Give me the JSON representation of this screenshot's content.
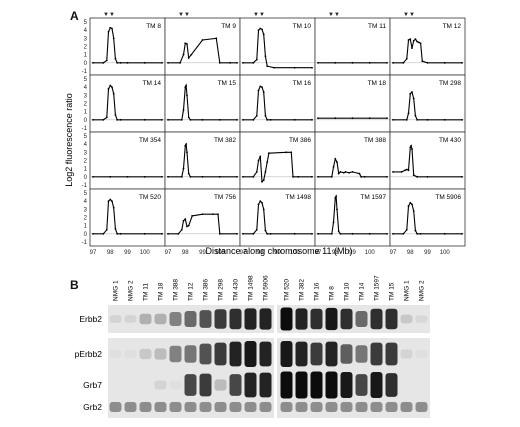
{
  "panel_a": {
    "letter": "A",
    "marker": "▼▼",
    "ylabel": "Log2 fluorescence ratio",
    "xlabel": "Distance along chromosome 11 (Mb)",
    "y_ticks": [
      "5",
      "4",
      "3",
      "2",
      "1",
      "0",
      "-1"
    ],
    "x_ticks": [
      "97",
      "98",
      "99",
      "100"
    ]
  },
  "chart_data": {
    "type": "line",
    "title": "",
    "xlabel": "Distance along chromosome 11 (Mb)",
    "ylabel": "Log2 fluorescence ratio",
    "xlim": [
      97,
      101
    ],
    "ylim": [
      -1,
      5
    ],
    "grid": false,
    "panels": [
      {
        "name": "TM 8",
        "x": [
          97.0,
          97.6,
          97.8,
          97.9,
          98.0,
          98.1,
          98.2,
          98.3,
          98.4,
          98.6,
          99.0,
          100.0,
          101.0
        ],
        "y": [
          0,
          0,
          0.3,
          3.8,
          4.3,
          4.2,
          3.0,
          0.5,
          0,
          0,
          0,
          0,
          0
        ]
      },
      {
        "name": "TM 9",
        "x": [
          97.0,
          97.7,
          97.9,
          98.0,
          98.1,
          98.2,
          98.35,
          99.0,
          99.8,
          100.0,
          100.6,
          101.0
        ],
        "y": [
          0,
          0,
          1.0,
          2.4,
          2.3,
          0.6,
          1.0,
          2.8,
          3.0,
          0,
          0,
          0
        ]
      },
      {
        "name": "TM 10",
        "x": [
          97.0,
          97.6,
          97.8,
          97.9,
          98.0,
          98.1,
          98.2,
          98.3,
          98.4,
          98.8,
          100.0,
          101.0
        ],
        "y": [
          0,
          0,
          0.4,
          4.0,
          4.2,
          4.1,
          3.5,
          0.8,
          -0.4,
          -0.6,
          -0.6,
          -0.6
        ]
      },
      {
        "name": "TM 11",
        "x": [
          97.0,
          98.0,
          99.0,
          100.0,
          101.0
        ],
        "y": [
          0,
          0,
          0,
          0,
          0
        ]
      },
      {
        "name": "TM 12",
        "x": [
          97.0,
          97.6,
          97.8,
          97.9,
          98.0,
          98.1,
          98.2,
          98.3,
          98.4,
          98.5,
          98.6,
          98.7,
          99.0,
          100.0,
          101.0
        ],
        "y": [
          0,
          0,
          0.5,
          2.8,
          2.9,
          1.8,
          2.7,
          2.9,
          2.6,
          2.5,
          2.4,
          0.2,
          0,
          0,
          0
        ]
      },
      {
        "name": "TM 14",
        "x": [
          97.0,
          97.6,
          97.8,
          97.9,
          98.0,
          98.1,
          98.2,
          98.3,
          98.4,
          98.6,
          100.0,
          101.0
        ],
        "y": [
          0,
          0,
          0.3,
          3.8,
          4.2,
          4.0,
          3.2,
          0.6,
          0,
          0,
          0,
          0
        ]
      },
      {
        "name": "TM 15",
        "x": [
          97.0,
          97.8,
          97.9,
          98.0,
          98.05,
          98.1,
          98.2,
          98.3,
          99.0,
          100.0,
          101.0
        ],
        "y": [
          0,
          0,
          1.2,
          4.0,
          4.2,
          3.0,
          0.3,
          0,
          0,
          0,
          0
        ]
      },
      {
        "name": "TM 16",
        "x": [
          97.0,
          97.6,
          97.8,
          97.9,
          98.0,
          98.1,
          98.2,
          98.3,
          98.4,
          98.6,
          100.0,
          101.0
        ],
        "y": [
          0,
          0,
          0.5,
          3.6,
          4.1,
          4.0,
          3.4,
          0.5,
          0,
          0,
          0,
          0
        ]
      },
      {
        "name": "TM 18",
        "x": [
          97.0,
          98.0,
          99.0,
          100.0,
          101.0
        ],
        "y": [
          0.2,
          0.2,
          0.2,
          0.2,
          0.2
        ]
      },
      {
        "name": "TM 298",
        "x": [
          97.0,
          97.8,
          97.9,
          98.0,
          98.1,
          98.2,
          98.3,
          98.4,
          99.0,
          100.0,
          101.0
        ],
        "y": [
          0,
          0,
          0.8,
          3.2,
          3.4,
          2.6,
          0.5,
          0,
          0,
          0,
          0
        ]
      },
      {
        "name": "TM 354",
        "x": [
          97.0,
          98.0,
          99.0,
          100.0,
          101.0
        ],
        "y": [
          0,
          0,
          0,
          0,
          0
        ]
      },
      {
        "name": "TM 382",
        "x": [
          97.0,
          97.8,
          97.9,
          98.0,
          98.05,
          98.1,
          98.2,
          98.3,
          99.0,
          100.0,
          101.0
        ],
        "y": [
          0,
          0,
          1.0,
          3.8,
          4.0,
          3.0,
          0.4,
          0,
          0,
          0,
          0
        ]
      },
      {
        "name": "TM 386",
        "x": [
          97.0,
          97.6,
          97.8,
          97.9,
          98.0,
          98.1,
          98.2,
          98.3,
          98.4,
          98.5,
          99.5,
          99.8,
          99.9,
          100.2,
          101.0
        ],
        "y": [
          0,
          0,
          0.6,
          2.0,
          2.5,
          -0.6,
          -0.4,
          0.6,
          1.8,
          2.9,
          3.0,
          3.0,
          0,
          0,
          0
        ]
      },
      {
        "name": "TM 388",
        "x": [
          97.0,
          97.8,
          97.9,
          98.0,
          98.1,
          98.2,
          98.3,
          98.5,
          98.6,
          98.8,
          99.0,
          99.4,
          99.5,
          99.7,
          101.0
        ],
        "y": [
          0,
          0,
          1.2,
          2.2,
          1.8,
          0.4,
          0.6,
          0.5,
          0.6,
          0.5,
          0.6,
          0.4,
          0.0,
          0.0,
          0.0
        ]
      },
      {
        "name": "TM 430",
        "x": [
          97.0,
          97.5,
          97.7,
          97.8,
          97.9,
          98.0,
          98.05,
          98.1,
          98.2,
          98.4,
          99.0,
          101.0
        ],
        "y": [
          0.6,
          0.6,
          0.8,
          0.9,
          0.8,
          3.6,
          3.8,
          3.4,
          0.2,
          0,
          0,
          0
        ]
      },
      {
        "name": "TM 520",
        "x": [
          97.0,
          97.6,
          97.8,
          97.9,
          98.0,
          98.1,
          98.2,
          98.3,
          98.4,
          98.6,
          100.0,
          101.0
        ],
        "y": [
          0,
          0,
          0.5,
          4.0,
          4.2,
          4.0,
          3.2,
          0.6,
          0,
          0,
          0,
          0
        ]
      },
      {
        "name": "TM 756",
        "x": [
          97.0,
          97.6,
          97.8,
          97.9,
          98.0,
          98.1,
          98.2,
          98.4,
          99.0,
          99.6,
          99.9,
          100.0,
          101.0
        ],
        "y": [
          0,
          0,
          0.5,
          1.6,
          1.8,
          0.9,
          1.0,
          2.2,
          2.4,
          2.4,
          2.4,
          0,
          0
        ]
      },
      {
        "name": "TM 1498",
        "x": [
          97.0,
          97.6,
          97.8,
          97.9,
          98.0,
          98.1,
          98.2,
          98.3,
          98.4,
          98.6,
          100.0,
          101.0
        ],
        "y": [
          0,
          0,
          0.5,
          3.6,
          4.0,
          3.8,
          3.0,
          0.4,
          0,
          0,
          0,
          0
        ]
      },
      {
        "name": "TM 1597",
        "x": [
          97.0,
          97.8,
          97.9,
          98.0,
          98.05,
          98.1,
          98.2,
          98.3,
          99.0,
          100.0,
          101.0
        ],
        "y": [
          0,
          0,
          1.4,
          4.4,
          4.6,
          3.0,
          0.3,
          0,
          0,
          0,
          0
        ]
      },
      {
        "name": "TM 5906",
        "x": [
          97.0,
          97.6,
          97.8,
          97.9,
          98.0,
          98.1,
          98.2,
          98.3,
          98.4,
          98.6,
          100.0,
          101.0
        ],
        "y": [
          0,
          0,
          0.5,
          3.4,
          3.8,
          3.6,
          2.8,
          0.4,
          0,
          0,
          0,
          0
        ]
      }
    ]
  },
  "panel_b": {
    "letter": "B",
    "lanes_left": [
      "NMG 1",
      "NMG 2",
      "TM 11",
      "TM 18",
      "TM 388",
      "TM 12",
      "TM 386",
      "TM 298",
      "TM 430",
      "TM 1498",
      "TM 5906"
    ],
    "lanes_right": [
      "TM 520",
      "TM 382",
      "TM 16",
      "TM 8",
      "TM 10",
      "TM 14",
      "TM 1597",
      "TM 15",
      "NMG 1",
      "NMG 2"
    ],
    "rows": [
      "Erbb2",
      "pErbb2",
      "Grb7",
      "Grb2"
    ],
    "intensity": {
      "left": [
        [
          0.1,
          0.1,
          0.25,
          0.25,
          0.45,
          0.55,
          0.65,
          0.75,
          0.8,
          0.85,
          0.85
        ],
        [
          0.05,
          0.05,
          0.15,
          0.2,
          0.45,
          0.5,
          0.65,
          0.75,
          0.85,
          0.9,
          0.85
        ],
        [
          0.0,
          0.0,
          0.0,
          0.1,
          0.05,
          0.7,
          0.75,
          0.2,
          0.7,
          0.85,
          0.85
        ],
        [
          0.4,
          0.4,
          0.4,
          0.4,
          0.4,
          0.4,
          0.4,
          0.4,
          0.4,
          0.4,
          0.4
        ]
      ],
      "right": [
        [
          0.95,
          0.85,
          0.8,
          0.9,
          0.8,
          0.55,
          0.8,
          0.8,
          0.15,
          0.08
        ],
        [
          0.9,
          0.85,
          0.75,
          0.85,
          0.6,
          0.5,
          0.75,
          0.75,
          0.1,
          0.05
        ],
        [
          0.95,
          0.95,
          0.95,
          0.95,
          0.9,
          0.7,
          0.9,
          0.8,
          0.0,
          0.0
        ],
        [
          0.4,
          0.4,
          0.4,
          0.4,
          0.4,
          0.4,
          0.4,
          0.4,
          0.4,
          0.4
        ]
      ]
    }
  }
}
